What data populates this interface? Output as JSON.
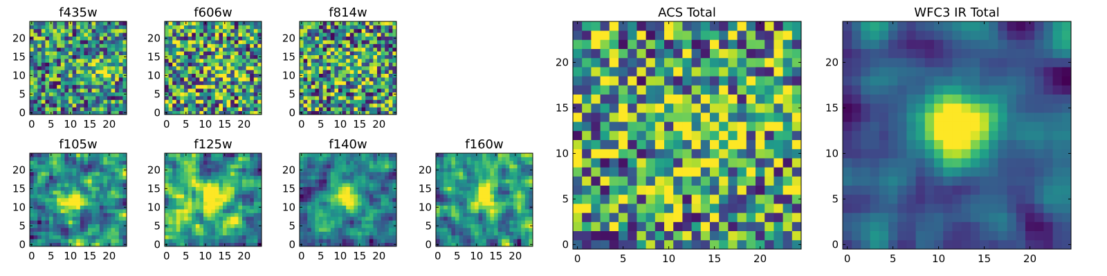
{
  "chart_data": [
    {
      "type": "heatmap",
      "title": "f435w",
      "grid_size": 25,
      "colormap": "viridis",
      "seed": 11,
      "smooth": 0,
      "blob": 0.35,
      "blob_x": 17,
      "blob_y": 12,
      "contrast": 0.6,
      "xticks": [
        0,
        5,
        10,
        15,
        20
      ],
      "yticks": [
        0,
        5,
        10,
        15,
        20
      ],
      "xlim": [
        0,
        25
      ],
      "ylim": [
        0,
        25
      ]
    },
    {
      "type": "heatmap",
      "title": "f606w",
      "grid_size": 25,
      "colormap": "viridis",
      "seed": 23,
      "smooth": 0,
      "blob": 0.25,
      "blob_x": 14,
      "blob_y": 12,
      "contrast": 0.6,
      "xticks": [
        0,
        5,
        10,
        15,
        20
      ],
      "yticks": [
        0,
        5,
        10,
        15,
        20
      ],
      "xlim": [
        0,
        25
      ],
      "ylim": [
        0,
        25
      ]
    },
    {
      "type": "heatmap",
      "title": "f814w",
      "grid_size": 25,
      "colormap": "viridis",
      "seed": 37,
      "smooth": 0,
      "blob": 0.25,
      "blob_x": 14,
      "blob_y": 12,
      "contrast": 0.65,
      "xticks": [
        0,
        5,
        10,
        15,
        20
      ],
      "yticks": [
        0,
        5,
        10,
        15,
        20
      ],
      "xlim": [
        0,
        25
      ],
      "ylim": [
        0,
        25
      ]
    },
    {
      "type": "heatmap",
      "title": "f105w",
      "grid_size": 25,
      "colormap": "viridis",
      "seed": 41,
      "smooth": 1,
      "blob": 0.3,
      "blob_x": 11,
      "blob_y": 12,
      "contrast": 0.7,
      "xticks": [
        0,
        5,
        10,
        15,
        20
      ],
      "yticks": [
        0,
        5,
        10,
        15,
        20
      ],
      "xlim": [
        0,
        25
      ],
      "ylim": [
        0,
        25
      ]
    },
    {
      "type": "heatmap",
      "title": "f125w",
      "grid_size": 25,
      "colormap": "viridis",
      "seed": 53,
      "smooth": 1,
      "blob": 0.3,
      "blob_x": 12,
      "blob_y": 12,
      "contrast": 0.7,
      "xticks": [
        0,
        5,
        10,
        15,
        20
      ],
      "yticks": [
        0,
        5,
        10,
        15,
        20
      ],
      "xlim": [
        0,
        25
      ],
      "ylim": [
        0,
        25
      ]
    },
    {
      "type": "heatmap",
      "title": "f140w",
      "grid_size": 25,
      "colormap": "viridis",
      "seed": 67,
      "smooth": 1,
      "blob": 0.45,
      "blob_x": 11,
      "blob_y": 13,
      "contrast": 0.7,
      "xticks": [
        0,
        5,
        10,
        15,
        20
      ],
      "yticks": [
        0,
        5,
        10,
        15,
        20
      ],
      "xlim": [
        0,
        25
      ],
      "ylim": [
        0,
        25
      ]
    },
    {
      "type": "heatmap",
      "title": "f160w",
      "grid_size": 25,
      "colormap": "viridis",
      "seed": 79,
      "smooth": 1,
      "blob": 0.35,
      "blob_x": 12,
      "blob_y": 13,
      "contrast": 0.75,
      "xticks": [
        0,
        5,
        10,
        15,
        20
      ],
      "yticks": [
        0,
        5,
        10,
        15,
        20
      ],
      "xlim": [
        0,
        25
      ],
      "ylim": [
        0,
        25
      ]
    },
    {
      "type": "heatmap",
      "title": "ACS Total",
      "grid_size": 25,
      "colormap": "viridis",
      "seed": 97,
      "smooth": 0,
      "blob": 0.25,
      "blob_x": 14,
      "blob_y": 13,
      "contrast": 0.55,
      "xticks": [
        0,
        5,
        10,
        15,
        20
      ],
      "yticks": [
        0,
        5,
        10,
        15,
        20
      ],
      "xlim": [
        0,
        25
      ],
      "ylim": [
        0,
        25
      ]
    },
    {
      "type": "heatmap",
      "title": "WFC3 IR Total",
      "grid_size": 25,
      "colormap": "viridis",
      "seed": 113,
      "smooth": 2,
      "blob": 0.6,
      "blob_x": 12,
      "blob_y": 13,
      "contrast": 0.7,
      "xticks": [
        0,
        5,
        10,
        15,
        20
      ],
      "yticks": [
        0,
        5,
        10,
        15,
        20
      ],
      "xlim": [
        0,
        25
      ],
      "ylim": [
        0,
        25
      ]
    }
  ]
}
